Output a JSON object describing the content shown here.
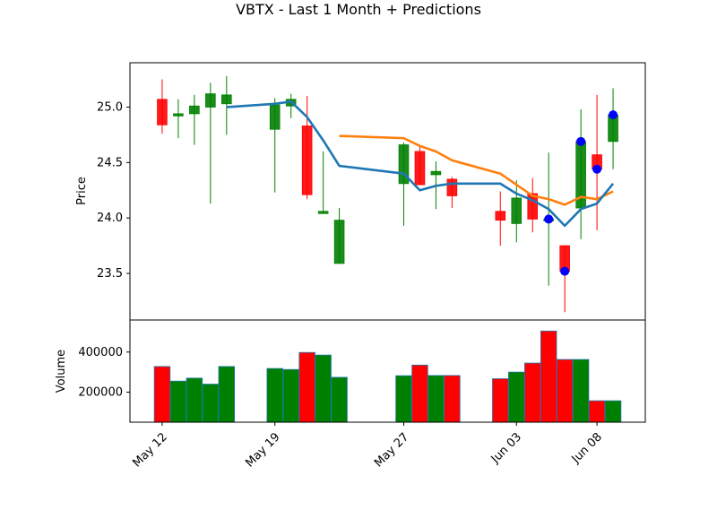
{
  "chart_data": {
    "type": "candlestick",
    "title": "VBTX - Last 1 Month + Predictions",
    "price_panel": {
      "ylabel": "Price",
      "ylim": [
        23.08,
        25.4
      ],
      "yticks": [
        "23.5",
        "24.0",
        "24.5",
        "25.0"
      ],
      "ytick_values": [
        23.5,
        24.0,
        24.5,
        25.0
      ],
      "candles": [
        {
          "date": "2025-05-12",
          "open": 25.07,
          "close": 24.84,
          "high": 25.25,
          "low": 24.76
        },
        {
          "date": "2025-05-13",
          "open": 24.92,
          "close": 24.94,
          "high": 25.07,
          "low": 24.72
        },
        {
          "date": "2025-05-14",
          "open": 24.94,
          "close": 25.01,
          "high": 25.11,
          "low": 24.66
        },
        {
          "date": "2025-05-15",
          "open": 25.0,
          "close": 25.12,
          "high": 25.22,
          "low": 24.13
        },
        {
          "date": "2025-05-16",
          "open": 25.03,
          "close": 25.11,
          "high": 25.28,
          "low": 24.75
        },
        {
          "date": "2025-05-19",
          "open": 24.8,
          "close": 25.02,
          "high": 25.08,
          "low": 24.23
        },
        {
          "date": "2025-05-20",
          "open": 25.01,
          "close": 25.07,
          "high": 25.12,
          "low": 24.9
        },
        {
          "date": "2025-05-21",
          "open": 24.83,
          "close": 24.21,
          "high": 25.1,
          "low": 24.17
        },
        {
          "date": "2025-05-22",
          "open": 24.04,
          "close": 24.06,
          "high": 24.6,
          "low": 24.04
        },
        {
          "date": "2025-05-23",
          "open": 23.59,
          "close": 23.98,
          "high": 24.09,
          "low": 23.59
        },
        {
          "date": "2025-05-27",
          "open": 24.31,
          "close": 24.66,
          "high": 24.68,
          "low": 23.93
        },
        {
          "date": "2025-05-28",
          "open": 24.6,
          "close": 24.3,
          "high": 24.65,
          "low": 24.3
        },
        {
          "date": "2025-05-29",
          "open": 24.39,
          "close": 24.42,
          "high": 24.51,
          "low": 24.08
        },
        {
          "date": "2025-05-30",
          "open": 24.35,
          "close": 24.2,
          "high": 24.37,
          "low": 24.09
        },
        {
          "date": "2025-06-02",
          "open": 24.06,
          "close": 23.98,
          "high": 24.24,
          "low": 23.75
        },
        {
          "date": "2025-06-03",
          "open": 23.95,
          "close": 24.18,
          "high": 24.34,
          "low": 23.78
        },
        {
          "date": "2025-06-04",
          "open": 24.22,
          "close": 23.99,
          "high": 24.36,
          "low": 23.87
        },
        {
          "date": "2025-06-05",
          "open": 23.99,
          "close": 23.99,
          "high": 24.59,
          "low": 23.39
        },
        {
          "date": "2025-06-06",
          "open": 23.75,
          "close": 23.52,
          "high": 23.75,
          "low": 23.15
        },
        {
          "date": "2025-06-07",
          "open": 24.09,
          "close": 24.69,
          "high": 24.98,
          "low": 23.81
        },
        {
          "date": "2025-06-08",
          "open": 24.57,
          "close": 24.44,
          "high": 25.11,
          "low": 23.89
        },
        {
          "date": "2025-06-09",
          "open": 24.69,
          "close": 24.93,
          "high": 25.17,
          "low": 24.44
        }
      ],
      "ma_blue": [
        {
          "date": "2025-05-16",
          "value": 25.0
        },
        {
          "date": "2025-05-19",
          "value": 25.03
        },
        {
          "date": "2025-05-20",
          "value": 25.05
        },
        {
          "date": "2025-05-21",
          "value": 24.91
        },
        {
          "date": "2025-05-22",
          "value": 24.7
        },
        {
          "date": "2025-05-23",
          "value": 24.47
        },
        {
          "date": "2025-05-27",
          "value": 24.4
        },
        {
          "date": "2025-05-28",
          "value": 24.25
        },
        {
          "date": "2025-05-29",
          "value": 24.29
        },
        {
          "date": "2025-05-30",
          "value": 24.31
        },
        {
          "date": "2025-06-02",
          "value": 24.31
        },
        {
          "date": "2025-06-03",
          "value": 24.22
        },
        {
          "date": "2025-06-04",
          "value": 24.16
        },
        {
          "date": "2025-06-05",
          "value": 24.08
        },
        {
          "date": "2025-06-06",
          "value": 23.93
        },
        {
          "date": "2025-06-07",
          "value": 24.08
        },
        {
          "date": "2025-06-08",
          "value": 24.13
        },
        {
          "date": "2025-06-09",
          "value": 24.31
        }
      ],
      "ma_orange": [
        {
          "date": "2025-05-23",
          "value": 24.74
        },
        {
          "date": "2025-05-27",
          "value": 24.72
        },
        {
          "date": "2025-05-28",
          "value": 24.65
        },
        {
          "date": "2025-05-29",
          "value": 24.6
        },
        {
          "date": "2025-05-30",
          "value": 24.52
        },
        {
          "date": "2025-06-02",
          "value": 24.4
        },
        {
          "date": "2025-06-03",
          "value": 24.3
        },
        {
          "date": "2025-06-04",
          "value": 24.2
        },
        {
          "date": "2025-06-05",
          "value": 24.17
        },
        {
          "date": "2025-06-06",
          "value": 24.12
        },
        {
          "date": "2025-06-07",
          "value": 24.19
        },
        {
          "date": "2025-06-08",
          "value": 24.17
        },
        {
          "date": "2025-06-09",
          "value": 24.24
        }
      ],
      "predictions": [
        {
          "date": "2025-06-05",
          "value": 23.99
        },
        {
          "date": "2025-06-06",
          "value": 23.52
        },
        {
          "date": "2025-06-07",
          "value": 24.69
        },
        {
          "date": "2025-06-08",
          "value": 24.44
        },
        {
          "date": "2025-06-09",
          "value": 24.93
        }
      ]
    },
    "volume_panel": {
      "ylabel": "Volume",
      "ylim": [
        50000,
        560000
      ],
      "yticks": [
        "200000",
        "400000"
      ],
      "ytick_values": [
        200000,
        400000
      ],
      "bars": [
        {
          "date": "2025-05-12",
          "value": 328000,
          "color": "red"
        },
        {
          "date": "2025-05-13",
          "value": 255000,
          "color": "green"
        },
        {
          "date": "2025-05-14",
          "value": 270000,
          "color": "green"
        },
        {
          "date": "2025-05-15",
          "value": 240000,
          "color": "green"
        },
        {
          "date": "2025-05-16",
          "value": 328000,
          "color": "green"
        },
        {
          "date": "2025-05-19",
          "value": 318000,
          "color": "green"
        },
        {
          "date": "2025-05-20",
          "value": 313000,
          "color": "green"
        },
        {
          "date": "2025-05-21",
          "value": 398000,
          "color": "red"
        },
        {
          "date": "2025-05-22",
          "value": 385000,
          "color": "green"
        },
        {
          "date": "2025-05-23",
          "value": 274000,
          "color": "green"
        },
        {
          "date": "2025-05-27",
          "value": 282000,
          "color": "green"
        },
        {
          "date": "2025-05-28",
          "value": 335000,
          "color": "red"
        },
        {
          "date": "2025-05-29",
          "value": 283000,
          "color": "green"
        },
        {
          "date": "2025-05-30",
          "value": 283000,
          "color": "red"
        },
        {
          "date": "2025-06-02",
          "value": 267000,
          "color": "red"
        },
        {
          "date": "2025-06-03",
          "value": 300000,
          "color": "green"
        },
        {
          "date": "2025-06-04",
          "value": 345000,
          "color": "red"
        },
        {
          "date": "2025-06-05",
          "value": 505000,
          "color": "red"
        },
        {
          "date": "2025-06-06",
          "value": 363000,
          "color": "red"
        },
        {
          "date": "2025-06-07",
          "value": 363000,
          "color": "green"
        },
        {
          "date": "2025-06-08",
          "value": 157000,
          "color": "red"
        },
        {
          "date": "2025-06-09",
          "value": 157000,
          "color": "green"
        }
      ]
    },
    "xaxis": {
      "tick_labels": [
        {
          "date": "2025-05-12",
          "label": "May 12"
        },
        {
          "date": "2025-05-19",
          "label": "May 19"
        },
        {
          "date": "2025-05-27",
          "label": "May 27"
        },
        {
          "date": "2025-06-03",
          "label": "Jun 03"
        },
        {
          "date": "2025-06-08",
          "label": "Jun 08"
        }
      ]
    },
    "colors": {
      "up": "#008000",
      "down": "#ff0000",
      "ma_blue": "#1f77b4",
      "ma_orange": "#ff7f0e",
      "prediction": "#0000ff"
    },
    "grid": false
  }
}
